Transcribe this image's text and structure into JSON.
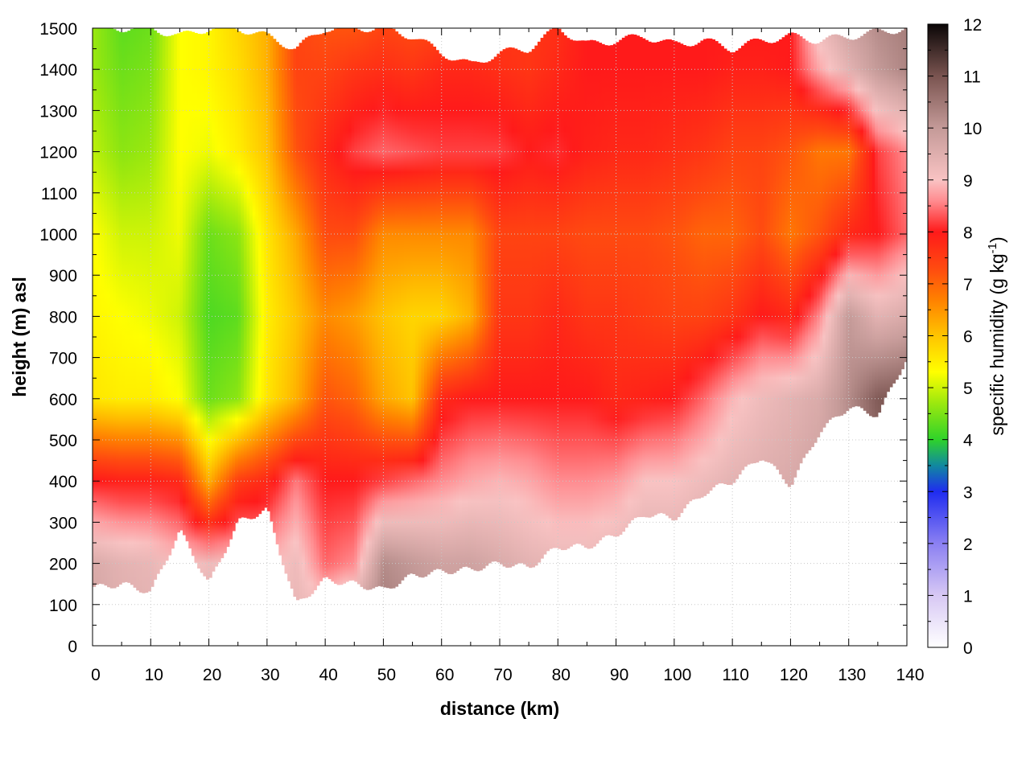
{
  "chart_data": {
    "type": "heatmap",
    "title": "",
    "xlabel": "distance (km)",
    "ylabel": "height (m) asl",
    "xlim": [
      0,
      140
    ],
    "ylim": [
      0,
      1500
    ],
    "x_ticks": [
      0,
      10,
      20,
      30,
      40,
      50,
      60,
      70,
      80,
      90,
      100,
      110,
      120,
      130,
      140
    ],
    "y_ticks": [
      0,
      100,
      200,
      300,
      400,
      500,
      600,
      700,
      800,
      900,
      1000,
      1100,
      1200,
      1300,
      1400,
      1500
    ],
    "grid": true,
    "colorbar": {
      "label_main": "specific humidity (g kg",
      "label_sup": "-1",
      "label_end": ")",
      "range": [
        0,
        12
      ],
      "ticks": [
        0,
        1,
        2,
        3,
        4,
        5,
        6,
        7,
        8,
        9,
        10,
        11,
        12
      ],
      "stops": [
        {
          "value": 0,
          "color": "#ffffff"
        },
        {
          "value": 1,
          "color": "#d7c8f4"
        },
        {
          "value": 2,
          "color": "#8b80f2"
        },
        {
          "value": 3,
          "color": "#1f2cf0"
        },
        {
          "value": 3.5,
          "color": "#1188a0"
        },
        {
          "value": 4,
          "color": "#2fd32a"
        },
        {
          "value": 4.7,
          "color": "#9be80e"
        },
        {
          "value": 5.3,
          "color": "#ffff00"
        },
        {
          "value": 6,
          "color": "#ffc400"
        },
        {
          "value": 6.7,
          "color": "#ff8000"
        },
        {
          "value": 7.3,
          "color": "#ff4a10"
        },
        {
          "value": 8,
          "color": "#ff1a1a"
        },
        {
          "value": 8.6,
          "color": "#ff8c90"
        },
        {
          "value": 9,
          "color": "#f9c3c3"
        },
        {
          "value": 10,
          "color": "#c49a98"
        },
        {
          "value": 11,
          "color": "#7a5450"
        },
        {
          "value": 12,
          "color": "#0a0606"
        }
      ]
    },
    "field": {
      "distance_km": [
        0,
        5,
        10,
        15,
        20,
        25,
        30,
        35,
        40,
        45,
        50,
        55,
        60,
        65,
        70,
        75,
        80,
        85,
        90,
        95,
        100,
        105,
        110,
        115,
        120,
        125,
        130,
        135,
        140
      ],
      "surface_height_m": [
        140,
        150,
        130,
        280,
        150,
        300,
        330,
        100,
        160,
        150,
        135,
        170,
        180,
        185,
        200,
        190,
        240,
        240,
        270,
        320,
        310,
        370,
        400,
        460,
        390,
        520,
        580,
        560,
        700
      ],
      "top_height_m": [
        1500,
        1500,
        1500,
        1480,
        1500,
        1500,
        1480,
        1450,
        1500,
        1500,
        1500,
        1480,
        1440,
        1410,
        1440,
        1450,
        1500,
        1460,
        1470,
        1480,
        1460,
        1470,
        1450,
        1470,
        1480,
        1470,
        1480,
        1490,
        1500
      ],
      "profile_heights_m": [
        0,
        200,
        400,
        600,
        800,
        1000,
        1200,
        1400,
        1500
      ],
      "profiles_g_per_kg": [
        [
          9.8,
          9.6,
          8.0,
          5.6,
          5.4,
          5.3,
          4.9,
          4.7,
          4.7
        ],
        [
          9.6,
          9.4,
          7.9,
          5.5,
          5.3,
          5.0,
          4.6,
          4.4,
          4.3
        ],
        [
          9.5,
          9.3,
          7.9,
          5.5,
          5.2,
          5.0,
          4.7,
          4.5,
          4.4
        ],
        [
          9.2,
          9.0,
          7.8,
          5.3,
          5.0,
          5.2,
          5.3,
          5.3,
          5.3
        ],
        [
          9.6,
          9.2,
          6.2,
          4.4,
          4.2,
          4.4,
          5.2,
          5.4,
          5.4
        ],
        [
          9.2,
          9.0,
          7.5,
          4.6,
          4.3,
          4.6,
          5.5,
          5.7,
          5.8
        ],
        [
          9.0,
          8.9,
          7.8,
          5.6,
          5.5,
          5.6,
          6.0,
          6.2,
          6.2
        ],
        [
          9.4,
          9.2,
          8.5,
          6.2,
          6.0,
          6.3,
          7.2,
          7.4,
          7.4
        ],
        [
          9.8,
          8.4,
          8.0,
          7.2,
          6.6,
          7.3,
          7.8,
          7.4,
          7.2
        ],
        [
          10.6,
          8.6,
          8.0,
          7.0,
          6.4,
          7.3,
          8.2,
          7.6,
          7.2
        ],
        [
          10.6,
          10.2,
          8.2,
          6.3,
          6.0,
          6.6,
          8.4,
          7.7,
          7.4
        ],
        [
          10.3,
          10.0,
          8.4,
          6.0,
          5.8,
          6.6,
          8.3,
          7.6,
          7.3
        ],
        [
          10.0,
          9.8,
          8.6,
          7.8,
          5.8,
          6.6,
          8.2,
          7.8,
          7.4
        ],
        [
          10.0,
          9.8,
          8.8,
          8.0,
          6.2,
          6.6,
          8.2,
          7.8,
          7.4
        ],
        [
          9.9,
          9.6,
          8.9,
          8.0,
          7.6,
          7.4,
          8.2,
          7.7,
          7.6
        ],
        [
          9.8,
          9.4,
          8.8,
          8.0,
          7.6,
          7.4,
          8.0,
          7.6,
          7.6
        ],
        [
          9.8,
          9.3,
          8.6,
          8.0,
          7.8,
          7.4,
          8.1,
          7.8,
          7.7
        ],
        [
          9.8,
          9.3,
          8.6,
          8.0,
          7.6,
          7.3,
          7.9,
          8.0,
          8.0
        ],
        [
          9.8,
          9.4,
          8.7,
          7.8,
          7.6,
          7.3,
          7.8,
          8.0,
          8.0
        ],
        [
          9.8,
          9.6,
          9.0,
          7.9,
          7.5,
          7.3,
          7.8,
          8.0,
          8.0
        ],
        [
          9.8,
          9.6,
          9.0,
          8.0,
          7.4,
          7.2,
          7.7,
          8.0,
          8.0
        ],
        [
          9.9,
          9.7,
          9.2,
          8.4,
          7.4,
          7.0,
          7.6,
          8.0,
          8.0
        ],
        [
          10.0,
          9.8,
          9.4,
          8.9,
          7.6,
          7.0,
          7.4,
          7.9,
          8.0
        ],
        [
          10.0,
          9.8,
          9.5,
          9.2,
          8.0,
          7.3,
          7.4,
          7.9,
          8.0
        ],
        [
          10.0,
          9.9,
          9.6,
          9.4,
          7.8,
          6.8,
          7.2,
          8.0,
          8.0
        ],
        [
          10.0,
          10.0,
          9.8,
          9.6,
          8.6,
          7.2,
          6.8,
          8.8,
          9.2
        ],
        [
          10.2,
          10.2,
          10.0,
          10.2,
          10.0,
          7.8,
          6.8,
          9.4,
          9.8
        ],
        [
          10.6,
          10.6,
          10.6,
          10.9,
          9.4,
          8.0,
          8.2,
          10.0,
          10.2
        ],
        [
          10.8,
          10.8,
          10.8,
          11.0,
          9.6,
          8.4,
          8.6,
          10.3,
          10.4
        ]
      ]
    }
  }
}
